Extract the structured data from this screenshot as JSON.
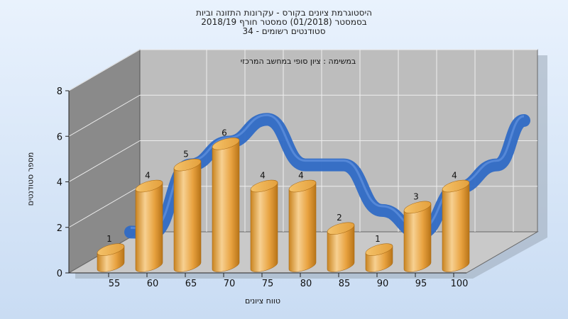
{
  "title_lines": [
    "היסטוגרמת ציונים בקורס - עקרונות התזונה וביות",
    "בסמסטר  (01/2018)  סמסטר חורף  2018/19",
    "סטודנטים רשומים - 34"
  ],
  "chart_data": {
    "type": "bar",
    "title": "היסטוגרמת ציונים בקורס - עקרונות התזונה וביות",
    "subtitle": "במשימה : ציון סופי במחשב המרכזי",
    "xlabel": "טווח ציונים",
    "ylabel": "מספר סטודנטים",
    "categories": [
      "55",
      "60",
      "65",
      "70",
      "75",
      "80",
      "85",
      "90",
      "95",
      "100"
    ],
    "values": [
      1,
      4,
      5,
      6,
      4,
      4,
      2,
      1,
      3,
      4
    ],
    "data_labels": [
      "1",
      "4",
      "5",
      "6",
      "4",
      "4",
      "2",
      "1",
      "3",
      "4"
    ],
    "y_ticks": [
      "0",
      "2",
      "4",
      "6",
      "8"
    ],
    "ylim": [
      0,
      8
    ],
    "grid": true,
    "overlay": {
      "type": "line",
      "shape": "ribbon",
      "color": "#2f6ac5",
      "y_start": 0.8,
      "y_end": 5.7
    },
    "colors": {
      "bar": "#e8a23f",
      "bar_light": "#f7d091",
      "bar_dark": "#b87418",
      "ribbon": "#2f6ac5",
      "wall": "#bdbdbd",
      "side_wall": "#8a8a8a",
      "background": "#d4e6fb"
    }
  }
}
